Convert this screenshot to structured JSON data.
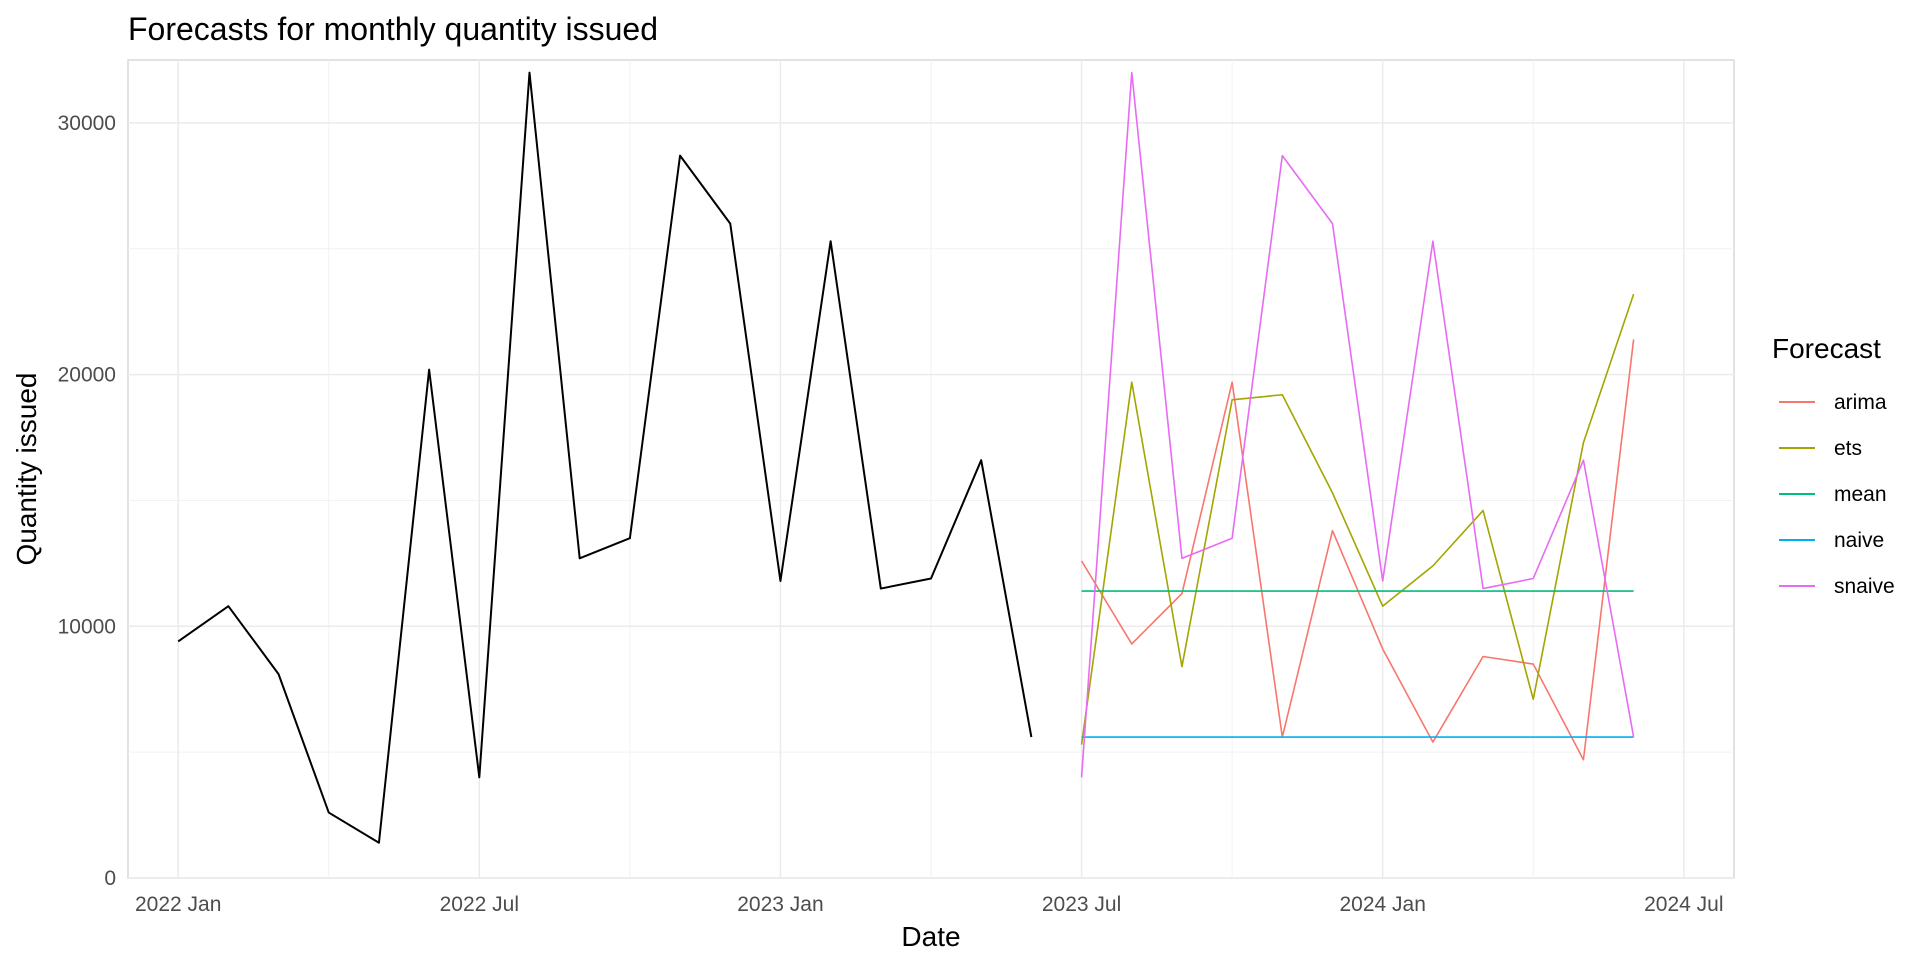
{
  "chart_data": {
    "type": "line",
    "title": "Forecasts for monthly quantity issued",
    "xlabel": "Date",
    "ylabel": "Quantity issued",
    "ylim": [
      0,
      32500
    ],
    "xlim": [
      "2021-12",
      "2024-08"
    ],
    "grid": true,
    "legend_position": "right",
    "x_ticks": [
      "2022 Jan",
      "2022 Jul",
      "2023 Jan",
      "2023 Jul",
      "2024 Jan",
      "2024 Jul"
    ],
    "y_ticks": [
      "0",
      "10000",
      "20000",
      "30000"
    ],
    "legend": {
      "title": "Forecast",
      "entries": [
        "arima",
        "ets",
        "mean",
        "naive",
        "snaive"
      ]
    },
    "series": [
      {
        "color": "#000000",
        "x": [
          "2022-01",
          "2022-02",
          "2022-03",
          "2022-04",
          "2022-05",
          "2022-06",
          "2022-07",
          "2022-08",
          "2022-09",
          "2022-10",
          "2022-11",
          "2022-12",
          "2023-01",
          "2023-02",
          "2023-03",
          "2023-04",
          "2023-05",
          "2023-06"
        ],
        "values": [
          9400,
          10800,
          8100,
          2600,
          1400,
          20200,
          4000,
          32000,
          12700,
          13500,
          28700,
          26000,
          11800,
          25300,
          11500,
          11900,
          16600,
          5600
        ]
      },
      {
        "name": "arima",
        "color": "#F8766D",
        "x": [
          "2023-07",
          "2023-08",
          "2023-09",
          "2023-10",
          "2023-11",
          "2023-12",
          "2024-01",
          "2024-02",
          "2024-03",
          "2024-04",
          "2024-05",
          "2024-06"
        ],
        "values": [
          12600,
          9300,
          11300,
          19700,
          5600,
          13800,
          9100,
          5400,
          8800,
          8500,
          4700,
          21400
        ]
      },
      {
        "name": "ets",
        "color": "#A3A500",
        "x": [
          "2023-07",
          "2023-08",
          "2023-09",
          "2023-10",
          "2023-11",
          "2023-12",
          "2024-01",
          "2024-02",
          "2024-03",
          "2024-04",
          "2024-05",
          "2024-06"
        ],
        "values": [
          5300,
          19700,
          8400,
          19000,
          19200,
          15300,
          10800,
          12400,
          14600,
          7100,
          17300,
          23200
        ]
      },
      {
        "name": "mean",
        "color": "#00BF7D",
        "x": [
          "2023-07",
          "2023-08",
          "2023-09",
          "2023-10",
          "2023-11",
          "2023-12",
          "2024-01",
          "2024-02",
          "2024-03",
          "2024-04",
          "2024-05",
          "2024-06"
        ],
        "values": [
          11400,
          11400,
          11400,
          11400,
          11400,
          11400,
          11400,
          11400,
          11400,
          11400,
          11400,
          11400
        ]
      },
      {
        "name": "naive",
        "color": "#00B0F6",
        "x": [
          "2023-07",
          "2023-08",
          "2023-09",
          "2023-10",
          "2023-11",
          "2023-12",
          "2024-01",
          "2024-02",
          "2024-03",
          "2024-04",
          "2024-05",
          "2024-06"
        ],
        "values": [
          5600,
          5600,
          5600,
          5600,
          5600,
          5600,
          5600,
          5600,
          5600,
          5600,
          5600,
          5600
        ]
      },
      {
        "name": "snaive",
        "color": "#E76BF3",
        "x": [
          "2023-07",
          "2023-08",
          "2023-09",
          "2023-10",
          "2023-11",
          "2023-12",
          "2024-01",
          "2024-02",
          "2024-03",
          "2024-04",
          "2024-05",
          "2024-06"
        ],
        "values": [
          4000,
          32000,
          12700,
          13500,
          28700,
          26000,
          11800,
          25300,
          11500,
          11900,
          16600,
          5600
        ]
      }
    ]
  }
}
